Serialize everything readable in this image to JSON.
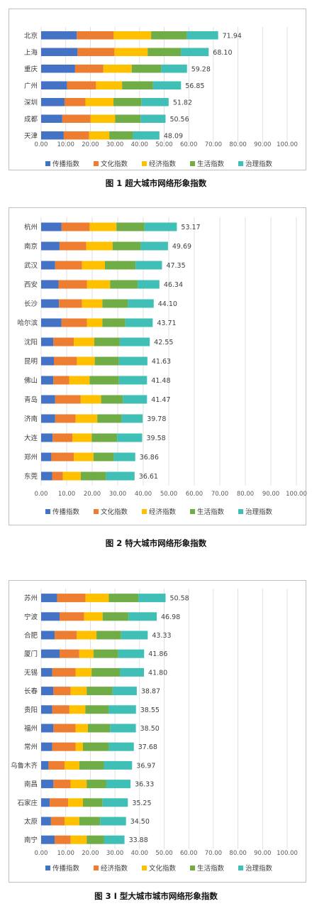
{
  "chart_data": [
    {
      "type": "bar",
      "stacked": true,
      "orientation": "horizontal",
      "caption": "图 1  超大城市网络形象指数",
      "categories": [
        "北京",
        "上海",
        "重庆",
        "广州",
        "深圳",
        "成都",
        "天津"
      ],
      "series": [
        {
          "name": "传播指数",
          "color": "#4472C4",
          "values": [
            14.5,
            14.8,
            13.8,
            10.5,
            9.5,
            8.6,
            9.2
          ]
        },
        {
          "name": "文化指数",
          "color": "#ED7D31",
          "values": [
            15.0,
            15.0,
            11.5,
            11.8,
            8.5,
            11.5,
            10.3
          ]
        },
        {
          "name": "经济指数",
          "color": "#FFC000",
          "values": [
            15.2,
            13.5,
            11.5,
            10.6,
            11.4,
            10.0,
            8.2
          ]
        },
        {
          "name": "生活指数",
          "color": "#70AD47",
          "values": [
            14.5,
            13.5,
            12.0,
            12.6,
            11.3,
            10.3,
            9.6
          ]
        },
        {
          "name": "治理指数",
          "color": "#3FBFB6",
          "values": [
            12.74,
            11.3,
            10.48,
            11.35,
            11.12,
            10.16,
            10.79
          ]
        }
      ],
      "totals": [
        "71.94",
        "68.10",
        "59.28",
        "56.85",
        "51.82",
        "50.56",
        "48.09"
      ],
      "xticks": [
        "0.00",
        "10.00",
        "20.00",
        "30.00",
        "40.00",
        "50.00",
        "60.00",
        "70.00",
        "80.00",
        "90.00",
        "100.00"
      ],
      "xlim": [
        0,
        100
      ],
      "grid": true,
      "legend_position": "bottom"
    },
    {
      "type": "bar",
      "stacked": true,
      "orientation": "horizontal",
      "caption": "图 2  特大城市网络形象指数",
      "categories": [
        "杭州",
        "南京",
        "武汉",
        "西安",
        "长沙",
        "哈尔滨",
        "沈阳",
        "昆明",
        "佛山",
        "青岛",
        "济南",
        "大连",
        "郑州",
        "东莞"
      ],
      "series": [
        {
          "name": "传播指数",
          "color": "#4472C4",
          "values": [
            8.0,
            7.2,
            5.5,
            6.8,
            7.0,
            8.0,
            4.8,
            5.0,
            4.8,
            5.5,
            5.5,
            4.5,
            4.0,
            4.3
          ]
        },
        {
          "name": "文化指数",
          "color": "#ED7D31",
          "values": [
            11.0,
            10.5,
            10.5,
            11.2,
            9.0,
            10.0,
            8.0,
            9.0,
            6.2,
            10.0,
            8.0,
            7.8,
            8.8,
            4.2
          ]
        },
        {
          "name": "经济指数",
          "color": "#FFC000",
          "values": [
            10.5,
            10.3,
            9.0,
            9.0,
            8.0,
            6.0,
            8.0,
            7.0,
            8.0,
            8.0,
            8.5,
            7.5,
            7.7,
            7.0
          ]
        },
        {
          "name": "生活指数",
          "color": "#70AD47",
          "values": [
            11.0,
            11.0,
            12.0,
            10.8,
            10.0,
            9.0,
            10.0,
            9.5,
            11.5,
            8.5,
            9.5,
            10.0,
            8.0,
            10.0
          ]
        },
        {
          "name": "治理指数",
          "color": "#3FBFB6",
          "values": [
            12.67,
            10.69,
            10.35,
            8.54,
            10.1,
            10.71,
            11.75,
            11.13,
            10.98,
            9.47,
            8.28,
            9.78,
            8.36,
            11.11
          ]
        }
      ],
      "totals": [
        "53.17",
        "49.69",
        "47.35",
        "46.34",
        "44.10",
        "43.71",
        "42.55",
        "41.63",
        "41.48",
        "41.47",
        "39.78",
        "39.58",
        "36.86",
        "36.61"
      ],
      "xticks": [
        "0.00",
        "10.00",
        "20.00",
        "30.00",
        "40.00",
        "50.00",
        "60.00",
        "70.00",
        "80.00",
        "90.00",
        "100.00"
      ],
      "xlim": [
        0,
        100
      ],
      "grid": true,
      "legend_position": "bottom"
    },
    {
      "type": "bar",
      "stacked": true,
      "orientation": "horizontal",
      "caption": "图 3   I 型大城市城市网络形象指数",
      "categories": [
        "苏州",
        "宁波",
        "合肥",
        "厦门",
        "无锡",
        "长春",
        "贵阳",
        "福州",
        "常州",
        "乌鲁木齐",
        "南昌",
        "石家庄",
        "太原",
        "南宁"
      ],
      "series": [
        {
          "name": "传播指数",
          "color": "#4472C4",
          "values": [
            6.5,
            7.5,
            5.5,
            7.5,
            4.5,
            5.0,
            4.5,
            5.0,
            4.5,
            3.0,
            5.0,
            3.5,
            4.0,
            5.5
          ]
        },
        {
          "name": "经济指数",
          "color": "#ED7D31",
          "values": [
            11.5,
            10.0,
            9.0,
            8.0,
            9.5,
            7.0,
            7.0,
            9.0,
            9.5,
            6.5,
            7.0,
            7.5,
            5.5,
            6.5
          ]
        },
        {
          "name": "文化指数",
          "color": "#FFC000",
          "values": [
            9.5,
            7.5,
            8.0,
            5.8,
            6.5,
            6.5,
            6.5,
            5.0,
            3.0,
            6.0,
            6.5,
            6.0,
            6.0,
            6.5
          ]
        },
        {
          "name": "生活指数",
          "color": "#70AD47",
          "values": [
            12.0,
            10.5,
            10.0,
            10.0,
            11.5,
            10.5,
            9.5,
            9.0,
            10.5,
            10.0,
            8.0,
            8.0,
            8.5,
            7.0
          ]
        },
        {
          "name": "治理指数",
          "color": "#3FBFB6",
          "values": [
            11.08,
            11.48,
            10.83,
            10.56,
            9.8,
            9.87,
            11.05,
            10.5,
            10.18,
            11.47,
            9.83,
            10.25,
            10.5,
            8.38
          ]
        }
      ],
      "totals": [
        "50.58",
        "46.98",
        "43.33",
        "41.86",
        "41.80",
        "38.87",
        "38.55",
        "38.50",
        "37.68",
        "36.97",
        "36.33",
        "35.25",
        "34.50",
        "33.88"
      ],
      "xticks": [
        "0.00",
        "10.00",
        "20.00",
        "30.00",
        "40.00",
        "50.00",
        "60.00",
        "70.00",
        "80.00",
        "90.00",
        "100.00"
      ],
      "xlim": [
        0,
        100
      ],
      "grid": true,
      "legend_position": "bottom"
    }
  ]
}
